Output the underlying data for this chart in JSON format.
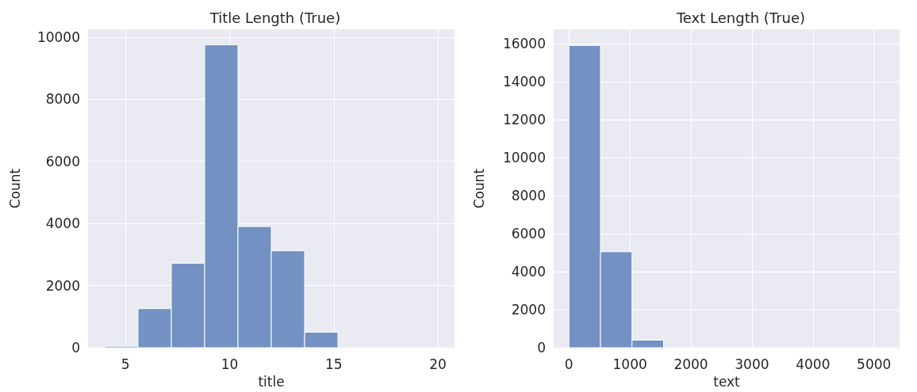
{
  "chart_data": [
    {
      "type": "histogram",
      "title": "Title Length (True)",
      "xlabel": "title",
      "ylabel": "Count",
      "color": "#7391c2",
      "bins": [
        4,
        5.6,
        7.2,
        8.8,
        10.4,
        12,
        13.6,
        15.2,
        16.8,
        18.4,
        20
      ],
      "values": [
        50,
        1260,
        2720,
        9750,
        3900,
        3120,
        500,
        0,
        0,
        0
      ],
      "xlim": [
        3.2,
        20.8
      ],
      "xticks": [
        5,
        10,
        15,
        20
      ],
      "ylim": [
        0,
        10250
      ],
      "yticks": [
        0,
        2000,
        4000,
        6000,
        8000,
        10000
      ],
      "grid": true
    },
    {
      "type": "histogram",
      "title": "Text Length (True)",
      "xlabel": "text",
      "ylabel": "Count",
      "color": "#7391c2",
      "bins": [
        0,
        517,
        1034,
        1551,
        2068,
        2585,
        3102,
        3619,
        4136,
        4653,
        5170
      ],
      "values": [
        15900,
        5050,
        400,
        0,
        0,
        0,
        0,
        0,
        0,
        0
      ],
      "xlim": [
        -250,
        5420
      ],
      "xticks": [
        0,
        1000,
        2000,
        3000,
        4000,
        5000
      ],
      "ylim": [
        0,
        16750
      ],
      "yticks": [
        0,
        2000,
        4000,
        6000,
        8000,
        10000,
        12000,
        14000,
        16000
      ],
      "grid": true
    }
  ]
}
